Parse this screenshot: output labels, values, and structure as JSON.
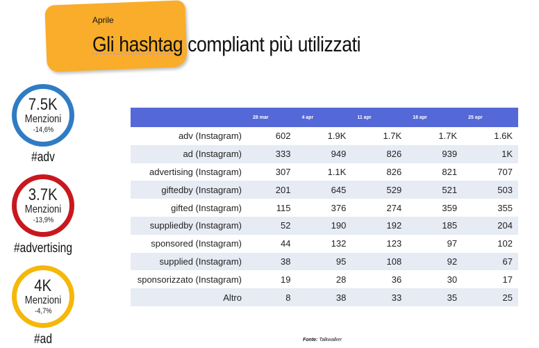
{
  "header": {
    "eyebrow": "Aprile",
    "title_part1": "Gli hashtag",
    "title_part2": " compliant più utilizzati"
  },
  "kpis": [
    {
      "value": "7.5K",
      "label": "Menzioni",
      "change": "-14,6%",
      "hashtag": "#adv",
      "color": "#2f7cc5"
    },
    {
      "value": "3.7K",
      "label": "Menzioni",
      "change": "-13,9%",
      "hashtag": "#advertising",
      "color": "#c8181e"
    },
    {
      "value": "4K",
      "label": "Menzioni",
      "change": "-4,7%",
      "hashtag": "#ad",
      "color": "#f5b70a"
    }
  ],
  "table": {
    "headers": [
      "",
      "28 mar",
      "4 apr",
      "11 apr",
      "18 apr",
      "25 apr"
    ],
    "rows": [
      [
        "adv (Instagram)",
        "602",
        "1.9K",
        "1.7K",
        "1.7K",
        "1.6K"
      ],
      [
        "ad (Instagram)",
        "333",
        "949",
        "826",
        "939",
        "1K"
      ],
      [
        "advertising (Instagram)",
        "307",
        "1.1K",
        "826",
        "821",
        "707"
      ],
      [
        "giftedby (Instagram)",
        "201",
        "645",
        "529",
        "521",
        "503"
      ],
      [
        "gifted (Instagram)",
        "115",
        "376",
        "274",
        "359",
        "355"
      ],
      [
        "suppliedby (Instagram)",
        "52",
        "190",
        "192",
        "185",
        "204"
      ],
      [
        "sponsored (Instagram)",
        "44",
        "132",
        "123",
        "97",
        "102"
      ],
      [
        "supplied (Instagram)",
        "38",
        "95",
        "108",
        "92",
        "67"
      ],
      [
        "sponsorizzato (Instagram)",
        "19",
        "28",
        "36",
        "30",
        "17"
      ],
      [
        "Altro",
        "8",
        "38",
        "33",
        "35",
        "25"
      ]
    ]
  },
  "source": {
    "label": "Fonte:",
    "value": " Talkwalker"
  }
}
